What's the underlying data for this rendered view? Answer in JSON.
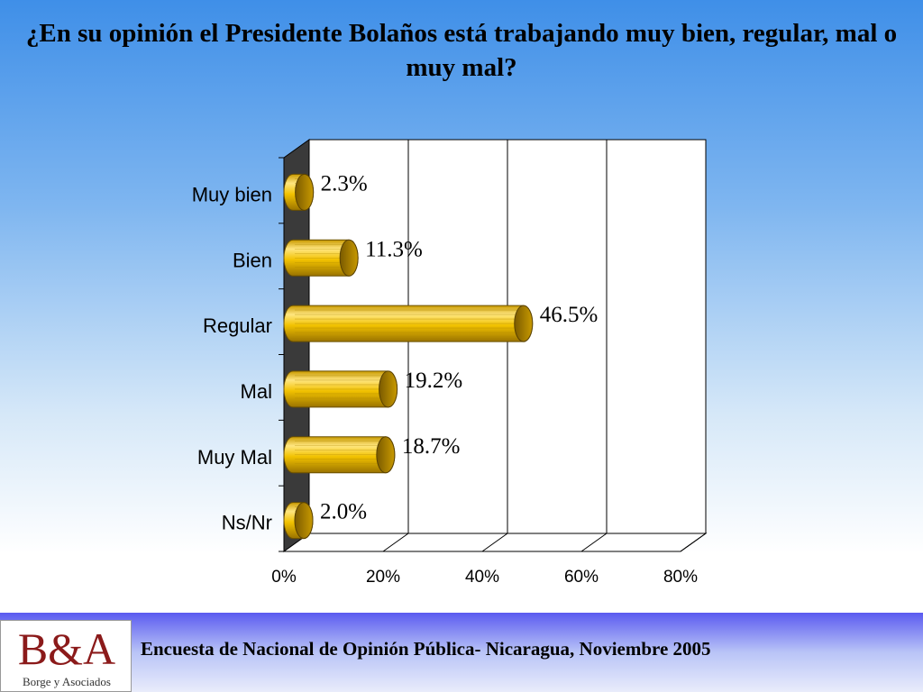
{
  "title": "¿En su opinión el Presidente Bolaños está trabajando muy bien, regular, mal  o muy mal?",
  "footer": {
    "logo_text": "B&A",
    "logo_subtitle": "Borge y Asociados",
    "caption": "Encuesta de Nacional de Opinión Pública- Nicaragua, Noviembre 2005"
  },
  "chart_data": {
    "type": "bar",
    "orientation": "horizontal",
    "style": "3d-cylinder",
    "categories": [
      "Muy bien",
      "Bien",
      "Regular",
      "Mal",
      "Muy Mal",
      "Ns/Nr"
    ],
    "values": [
      2.3,
      11.3,
      46.5,
      19.2,
      18.7,
      2.0
    ],
    "data_labels": [
      "2.3%",
      "11.3%",
      "46.5%",
      "19.2%",
      "18.7%",
      "2.0%"
    ],
    "x_ticks": [
      "0%",
      "20%",
      "40%",
      "60%",
      "80%"
    ],
    "xlim": [
      0,
      80
    ],
    "grid": true,
    "legend": "none",
    "colors": {
      "bar": "#f2c200",
      "bar_highlight": "#ffe680",
      "bar_shadow": "#a07800",
      "wall": "#3a3a3a"
    }
  }
}
